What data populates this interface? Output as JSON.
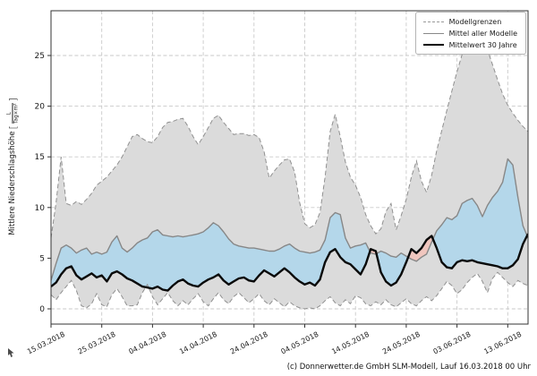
{
  "chart_data": {
    "type": "line",
    "title": "",
    "y_axis": {
      "label": "Mittlere Niederschlagshöhe",
      "unit_numerator": "L",
      "unit_denominator": "Tag×m²",
      "ticks": [
        0,
        5,
        10,
        15,
        20,
        25
      ],
      "range": [
        0,
        29.4
      ],
      "grid": true
    },
    "x_axis": {
      "tick_labels": [
        "15.03.2018",
        "25.03.2018",
        "04.04.2018",
        "14.04.2018",
        "24.04.2018",
        "04.05.2018",
        "14.05.2018",
        "24.05.2018",
        "03.06.2018",
        "13.06.2018"
      ],
      "tick_interval_days": 10,
      "total_days": 94,
      "grid": true,
      "label_rotation_deg": -27
    },
    "legend": {
      "position": "top-right",
      "entries": [
        {
          "label": "Modellgrenzen",
          "style": "dashed-gray"
        },
        {
          "label": "Mittel aller Modelle",
          "style": "solid-gray"
        },
        {
          "label": "Mittelwert 30 Jahre",
          "style": "solid-black-thick"
        }
      ]
    },
    "series": [
      {
        "name": "Modellgrenzen oben",
        "role": "model_max",
        "values": [
          7.0,
          10.5,
          15.0,
          10.4,
          10.2,
          10.6,
          10.3,
          10.8,
          11.4,
          12.2,
          12.6,
          13.0,
          13.6,
          14.2,
          15.0,
          16.0,
          17.0,
          17.2,
          16.8,
          16.5,
          16.4,
          17.0,
          17.9,
          18.4,
          18.5,
          18.7,
          18.8,
          18.0,
          17.0,
          16.2,
          17.0,
          17.9,
          18.8,
          19.1,
          18.4,
          17.8,
          17.2,
          17.3,
          17.3,
          17.1,
          17.2,
          16.9,
          15.5,
          12.9,
          13.6,
          14.2,
          14.7,
          14.8,
          13.5,
          10.5,
          8.4,
          8.0,
          8.3,
          9.5,
          13.0,
          17.5,
          19.2,
          17.0,
          14.5,
          13.0,
          12.2,
          11.0,
          9.3,
          8.2,
          7.4,
          7.9,
          9.6,
          10.4,
          7.8,
          9.2,
          10.8,
          13.0,
          14.6,
          12.6,
          11.5,
          13.2,
          15.6,
          17.6,
          19.6,
          21.5,
          23.4,
          25.1,
          26.4,
          27.3,
          27.7,
          27.1,
          25.6,
          24.1,
          22.6,
          21.2,
          20.1,
          19.3,
          18.6,
          18.0,
          17.5
        ]
      },
      {
        "name": "Modellgrenzen unten",
        "role": "model_min",
        "values": [
          1.4,
          0.9,
          1.6,
          2.2,
          2.8,
          1.8,
          0.3,
          0.1,
          0.5,
          1.5,
          0.4,
          0.2,
          1.4,
          2.0,
          1.2,
          0.3,
          0.3,
          0.4,
          1.6,
          2.4,
          1.2,
          0.4,
          1.0,
          1.6,
          0.8,
          0.3,
          0.8,
          0.4,
          1.0,
          1.5,
          0.7,
          0.3,
          1.0,
          1.6,
          0.9,
          0.5,
          1.2,
          1.6,
          1.1,
          0.6,
          1.0,
          1.5,
          0.8,
          0.4,
          1.0,
          0.6,
          0.2,
          0.7,
          0.3,
          0.1,
          0.0,
          0.1,
          0.0,
          0.3,
          0.8,
          1.2,
          0.6,
          0.3,
          0.9,
          0.5,
          1.3,
          1.1,
          0.5,
          0.3,
          0.7,
          0.4,
          0.9,
          0.4,
          0.2,
          0.6,
          1.0,
          0.5,
          0.3,
          0.8,
          1.2,
          0.8,
          1.3,
          2.0,
          2.7,
          2.3,
          1.5,
          1.9,
          2.6,
          3.1,
          3.5,
          2.7,
          1.6,
          3.0,
          3.6,
          3.1,
          2.6,
          2.2,
          2.8,
          2.5,
          2.3
        ]
      },
      {
        "name": "Mittel aller Modelle",
        "role": "model_mean",
        "values": [
          2.8,
          4.5,
          6.0,
          6.3,
          6.0,
          5.5,
          5.8,
          6.0,
          5.4,
          5.6,
          5.4,
          5.6,
          6.6,
          7.2,
          6.0,
          5.6,
          6.0,
          6.5,
          6.8,
          7.0,
          7.6,
          7.8,
          7.3,
          7.2,
          7.1,
          7.2,
          7.1,
          7.2,
          7.3,
          7.4,
          7.6,
          8.0,
          8.5,
          8.2,
          7.6,
          6.9,
          6.4,
          6.2,
          6.1,
          6.0,
          6.0,
          5.9,
          5.8,
          5.7,
          5.7,
          5.9,
          6.2,
          6.4,
          6.0,
          5.7,
          5.6,
          5.5,
          5.6,
          5.8,
          6.8,
          9.0,
          9.5,
          9.3,
          7.0,
          6.0,
          6.2,
          6.3,
          6.5,
          5.5,
          5.4,
          5.7,
          5.5,
          5.2,
          5.1,
          5.5,
          5.2,
          4.9,
          4.7,
          5.1,
          5.4,
          6.6,
          7.7,
          8.3,
          9.0,
          8.8,
          9.2,
          10.4,
          10.7,
          10.9,
          10.2,
          9.1,
          10.2,
          11.0,
          11.6,
          12.5,
          14.8,
          14.2,
          11.0,
          8.2,
          7.0
        ]
      },
      {
        "name": "Mittelwert 30 Jahre",
        "role": "mean_30y",
        "values": [
          2.2,
          2.6,
          3.4,
          4.0,
          4.2,
          3.3,
          2.9,
          3.2,
          3.5,
          3.1,
          3.3,
          2.7,
          3.5,
          3.7,
          3.4,
          3.0,
          2.8,
          2.5,
          2.2,
          2.1,
          2.0,
          2.2,
          1.9,
          1.8,
          2.3,
          2.7,
          2.9,
          2.5,
          2.3,
          2.2,
          2.6,
          2.9,
          3.1,
          3.4,
          2.8,
          2.4,
          2.7,
          3.0,
          3.1,
          2.8,
          2.7,
          3.3,
          3.8,
          3.5,
          3.2,
          3.6,
          4.0,
          3.6,
          3.1,
          2.7,
          2.4,
          2.6,
          2.3,
          2.9,
          4.6,
          5.6,
          5.9,
          5.1,
          4.6,
          4.4,
          3.9,
          3.4,
          4.4,
          5.9,
          5.7,
          3.6,
          2.7,
          2.3,
          2.6,
          3.4,
          4.6,
          5.9,
          5.5,
          6.0,
          6.8,
          7.2,
          6.0,
          4.6,
          4.1,
          4.0,
          4.6,
          4.8,
          4.7,
          4.8,
          4.6,
          4.5,
          4.4,
          4.3,
          4.2,
          4.0,
          4.0,
          4.3,
          4.9,
          6.4,
          7.4
        ]
      }
    ],
    "colors": {
      "band_fill": "#dbdbdb",
      "band_edge": "#909090",
      "mean_line": "#878787",
      "mean30_line": "#0a0a0a",
      "above_fill": "#b4d7ea",
      "below_fill": "#f0c6be",
      "grid": "#c9c9c9",
      "spine": "#333333",
      "text": "#1a1a1a"
    },
    "footer": "(c) Donnerwetter.de GmbH SLM-Modell, Lauf 16.03.2018 00 Uhr"
  }
}
